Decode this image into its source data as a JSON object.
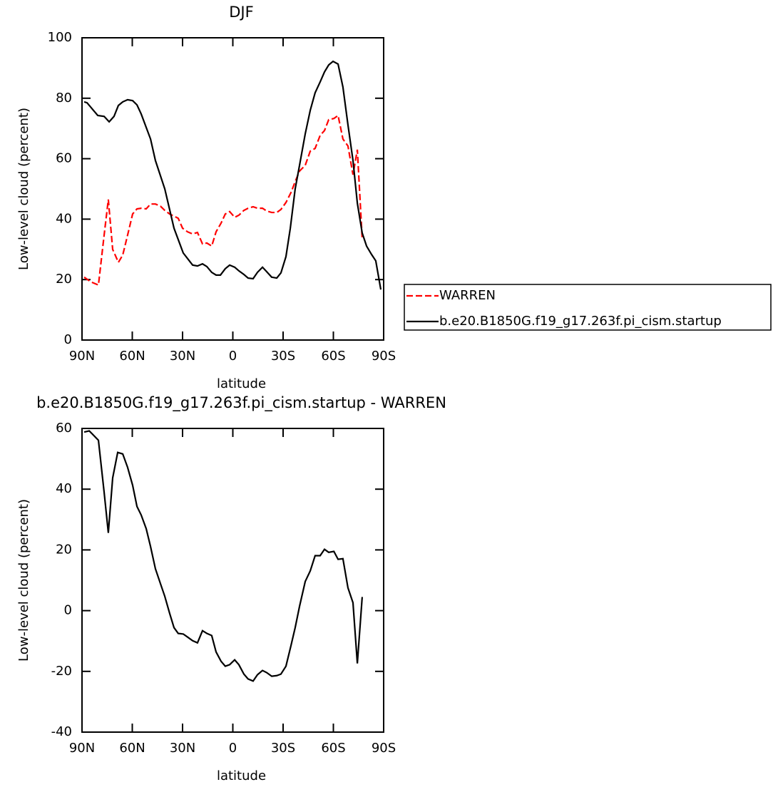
{
  "chart_data": [
    {
      "type": "line",
      "title": "DJF",
      "x_label": "latitude",
      "y_label": "Low-level cloud (percent)",
      "xlim": [
        90,
        -90
      ],
      "xticks": [
        {
          "value": 90,
          "label": "90N"
        },
        {
          "value": 60,
          "label": "60N"
        },
        {
          "value": 30,
          "label": "30N"
        },
        0,
        {
          "value": -30,
          "label": "30S"
        },
        {
          "value": -60,
          "label": "60S"
        },
        {
          "value": -90,
          "label": "90S"
        }
      ],
      "ylim": [
        0,
        100
      ],
      "yticks": [
        0,
        20,
        40,
        60,
        80,
        100
      ],
      "legend": "right",
      "series": [
        {
          "name": "WARREN",
          "color": "#ff0000",
          "line_style": "dashed",
          "x": [
            88.7,
            84.9,
            80.2,
            76.8,
            74.3,
            71.7,
            68.3,
            65.7,
            62.8,
            59.8,
            57.2,
            54.7,
            51.7,
            49.1,
            46.2,
            43.2,
            40.6,
            37.7,
            32.6,
            30,
            27,
            24,
            21.1,
            18.1,
            15.5,
            12.6,
            10,
            7,
            4.5,
            1.9,
            -1.1,
            -3.6,
            -6.6,
            -9.1,
            -12.1,
            -14.7,
            -17.7,
            -20.2,
            -23.2,
            -26.2,
            -28.7,
            -31.7,
            -34.7,
            -37.2,
            -39.8,
            -43.2,
            -46.2,
            -49.1,
            -52.1,
            -54.7,
            -57.2,
            -60.3,
            -62.8,
            -65.7,
            -68.7,
            -71.7,
            -74.3,
            -77.2
          ],
          "values": [
            20.8,
            19.3,
            18.2,
            34.7,
            46.5,
            30,
            25.7,
            28.1,
            34.7,
            41.7,
            43.4,
            43.6,
            43.4,
            45,
            45,
            44.3,
            42.9,
            41.7,
            40.3,
            37,
            35.8,
            35.1,
            35.6,
            31.8,
            32.1,
            31.1,
            35.8,
            38.7,
            41.7,
            42.5,
            40.6,
            41.3,
            42.9,
            43.6,
            44.1,
            43.6,
            43.6,
            42.7,
            42.2,
            42.2,
            43.2,
            45.5,
            48.8,
            52.4,
            55.9,
            57.8,
            62.5,
            63.4,
            67.7,
            69.3,
            72.9,
            73.3,
            74.3,
            66.5,
            64.2,
            54.7,
            63,
            33.5
          ]
        },
        {
          "name": "b.e20.B1850G.f19_g17.263f.pi_cism.startup",
          "color": "#000000",
          "line_style": "solid",
          "x": [
            88.7,
            87,
            80.6,
            76.8,
            73.8,
            70.9,
            68.3,
            65.7,
            62.8,
            59.8,
            57.2,
            54.7,
            49.1,
            46.2,
            40.6,
            35.1,
            29.6,
            24,
            21.1,
            18.1,
            15.5,
            12.6,
            10,
            7.4,
            4.5,
            1.9,
            -1.1,
            -3.6,
            -6.6,
            -9.1,
            -12.1,
            -14.7,
            -17.7,
            -20.2,
            -23.2,
            -26.2,
            -28.7,
            -31.7,
            -34.3,
            -37.2,
            -39.8,
            -43.2,
            -46.2,
            -49.1,
            -52.1,
            -54.7,
            -57.2,
            -59.8,
            -62.8,
            -65.7,
            -68.7,
            -71.7,
            -74.3,
            -77.2,
            -79.8,
            -82.8,
            -85.3,
            -88.3
          ],
          "values": [
            78.8,
            78.5,
            74.3,
            74,
            72.2,
            74,
            77.6,
            78.8,
            79.5,
            79.2,
            77.8,
            74.8,
            66.5,
            59.4,
            50,
            37,
            28.8,
            24.8,
            24.5,
            25.2,
            24.3,
            22.4,
            21.5,
            21.5,
            23.6,
            24.8,
            24.1,
            22.9,
            21.7,
            20.5,
            20.3,
            22.4,
            24.1,
            22.6,
            20.8,
            20.5,
            22.2,
            27.6,
            37,
            50,
            57.8,
            68.2,
            76,
            81.8,
            85.4,
            88.7,
            91,
            92.2,
            91.3,
            83.7,
            71.2,
            59.4,
            45.3,
            35.4,
            31.1,
            28.3,
            26.2,
            16.7
          ]
        }
      ]
    },
    {
      "type": "line",
      "title": "b.e20.B1850G.f19_g17.263f.pi_cism.startup - WARREN",
      "x_label": "latitude",
      "y_label": "Low-level cloud (percent)",
      "xlim": [
        90,
        -90
      ],
      "xticks": [
        {
          "value": 90,
          "label": "90N"
        },
        {
          "value": 60,
          "label": "60N"
        },
        {
          "value": 30,
          "label": "30N"
        },
        0,
        {
          "value": -30,
          "label": "30S"
        },
        {
          "value": -60,
          "label": "60S"
        },
        {
          "value": -90,
          "label": "90S"
        }
      ],
      "ylim": [
        -40,
        60
      ],
      "yticks": [
        -40,
        -20,
        0,
        20,
        40,
        60
      ],
      "series": [
        {
          "color": "#000000",
          "line_style": "solid",
          "x": [
            88.7,
            85.7,
            80.2,
            76.8,
            74.3,
            71.7,
            68.7,
            65.7,
            62.8,
            59.8,
            57.2,
            54.7,
            51.7,
            49.1,
            46.2,
            43.2,
            40.6,
            37.7,
            35.1,
            32.6,
            29.6,
            27,
            24,
            21.1,
            18.1,
            15.5,
            12.6,
            10,
            7,
            4.5,
            1.9,
            -1.1,
            -3.6,
            -6.6,
            -9.1,
            -12.1,
            -14.7,
            -17.7,
            -20.2,
            -23.2,
            -26.2,
            -28.7,
            -31.7,
            -34.7,
            -37.2,
            -39.8,
            -43.2,
            -46.2,
            -49.1,
            -52.1,
            -54.7,
            -57.2,
            -60.3,
            -62.8,
            -65.7,
            -68.7,
            -71.7,
            -74.3,
            -77.2
          ],
          "values": [
            58.8,
            59.2,
            56.1,
            39,
            25.6,
            43.7,
            52.1,
            51.6,
            47.2,
            41.3,
            34.3,
            31.5,
            27,
            21.1,
            13.8,
            8.9,
            4.7,
            -0.9,
            -5.6,
            -7.5,
            -7.7,
            -8.7,
            -9.9,
            -10.6,
            -6.6,
            -7.5,
            -8.2,
            -13.6,
            -16.7,
            -18.3,
            -17.8,
            -16.2,
            -17.8,
            -20.9,
            -22.5,
            -23.2,
            -21.1,
            -19.7,
            -20.4,
            -21.6,
            -21.4,
            -20.9,
            -18.3,
            -11.5,
            -5.6,
            1.4,
            9.6,
            13.1,
            18.1,
            18.1,
            20.2,
            19.2,
            19.5,
            16.9,
            17.1,
            7.5,
            2.6,
            -17.4,
            4.5
          ]
        }
      ]
    }
  ]
}
